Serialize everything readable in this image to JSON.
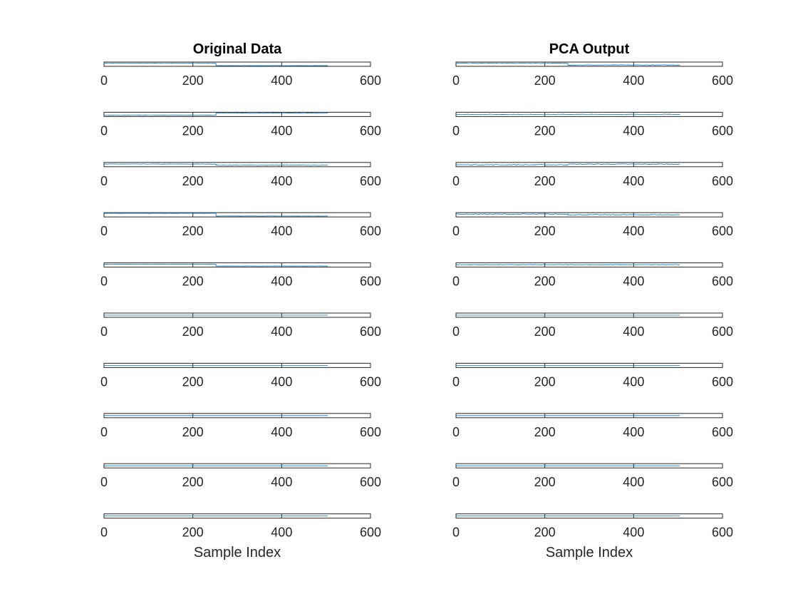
{
  "chart_data": [
    {
      "type": "line",
      "title": "Original Data",
      "xlabel": "Sample Index",
      "xlim": [
        0,
        600
      ],
      "xticks": [
        "0",
        "200",
        "400",
        "600"
      ],
      "series_color": "#0072BD",
      "grid": false,
      "subplots": [
        {
          "segments": [
            {
              "x": [
                0,
                252
              ],
              "y": 0.72
            },
            {
              "x": [
                252,
                504
              ],
              "y": 0.15
            }
          ],
          "noise": 0.02
        },
        {
          "segments": [
            {
              "x": [
                0,
                252
              ],
              "y": 0.3
            },
            {
              "x": [
                252,
                504
              ],
              "y": 0.8
            }
          ],
          "noise": 0.05
        },
        {
          "segments": [
            {
              "x": [
                0,
                252
              ],
              "y": 0.62
            },
            {
              "x": [
                252,
                504
              ],
              "y": 0.35
            }
          ],
          "noise": 0.04
        },
        {
          "segments": [
            {
              "x": [
                0,
                252
              ],
              "y": 0.85
            },
            {
              "x": [
                252,
                504
              ],
              "y": 0.2
            }
          ],
          "noise": 0.02
        },
        {
          "segments": [
            {
              "x": [
                0,
                252
              ],
              "y": 0.68
            },
            {
              "x": [
                252,
                504
              ],
              "y": 0.25
            }
          ],
          "noise": 0.02
        },
        {
          "segments": [
            {
              "x": [
                0,
                504
              ],
              "y": 0.5
            }
          ],
          "noise": 0.0
        },
        {
          "segments": [
            {
              "x": [
                0,
                504
              ],
              "y": 0.5
            }
          ],
          "noise": 0.0
        },
        {
          "segments": [
            {
              "x": [
                0,
                504
              ],
              "y": 0.5
            }
          ],
          "noise": 0.0
        },
        {
          "segments": [
            {
              "x": [
                0,
                504
              ],
              "y": 0.5
            }
          ],
          "noise": 0.0
        },
        {
          "segments": [
            {
              "x": [
                0,
                504
              ],
              "y": 0.5
            }
          ],
          "noise": 0.0
        }
      ]
    },
    {
      "type": "line",
      "title": "PCA Output",
      "xlabel": "Sample Index",
      "xlim": [
        0,
        600
      ],
      "xticks": [
        "0",
        "200",
        "400",
        "600"
      ],
      "series_color": "#0072BD",
      "grid": false,
      "subplots": [
        {
          "segments": [
            {
              "x": [
                0,
                252
              ],
              "y": 0.72
            },
            {
              "x": [
                252,
                504
              ],
              "y": 0.3
            }
          ],
          "noise": 0.05
        },
        {
          "segments": [
            {
              "x": [
                0,
                504
              ],
              "y": 0.5
            }
          ],
          "noise": 0.06
        },
        {
          "segments": [
            {
              "x": [
                0,
                252
              ],
              "y": 0.45
            },
            {
              "x": [
                252,
                504
              ],
              "y": 0.6
            }
          ],
          "noise": 0.08
        },
        {
          "segments": [
            {
              "x": [
                0,
                252
              ],
              "y": 0.65
            },
            {
              "x": [
                252,
                504
              ],
              "y": 0.5
            }
          ],
          "noise": 0.1
        },
        {
          "segments": [
            {
              "x": [
                0,
                504
              ],
              "y": 0.55
            }
          ],
          "noise": 0.06
        },
        {
          "segments": [
            {
              "x": [
                0,
                504
              ],
              "y": 0.5
            }
          ],
          "noise": 0.0
        },
        {
          "segments": [
            {
              "x": [
                0,
                504
              ],
              "y": 0.5
            }
          ],
          "noise": 0.0
        },
        {
          "segments": [
            {
              "x": [
                0,
                504
              ],
              "y": 0.5
            }
          ],
          "noise": 0.0
        },
        {
          "segments": [
            {
              "x": [
                0,
                504
              ],
              "y": 0.5
            }
          ],
          "noise": 0.0
        },
        {
          "segments": [
            {
              "x": [
                0,
                504
              ],
              "y": 0.5
            }
          ],
          "noise": 0.0
        }
      ]
    }
  ]
}
